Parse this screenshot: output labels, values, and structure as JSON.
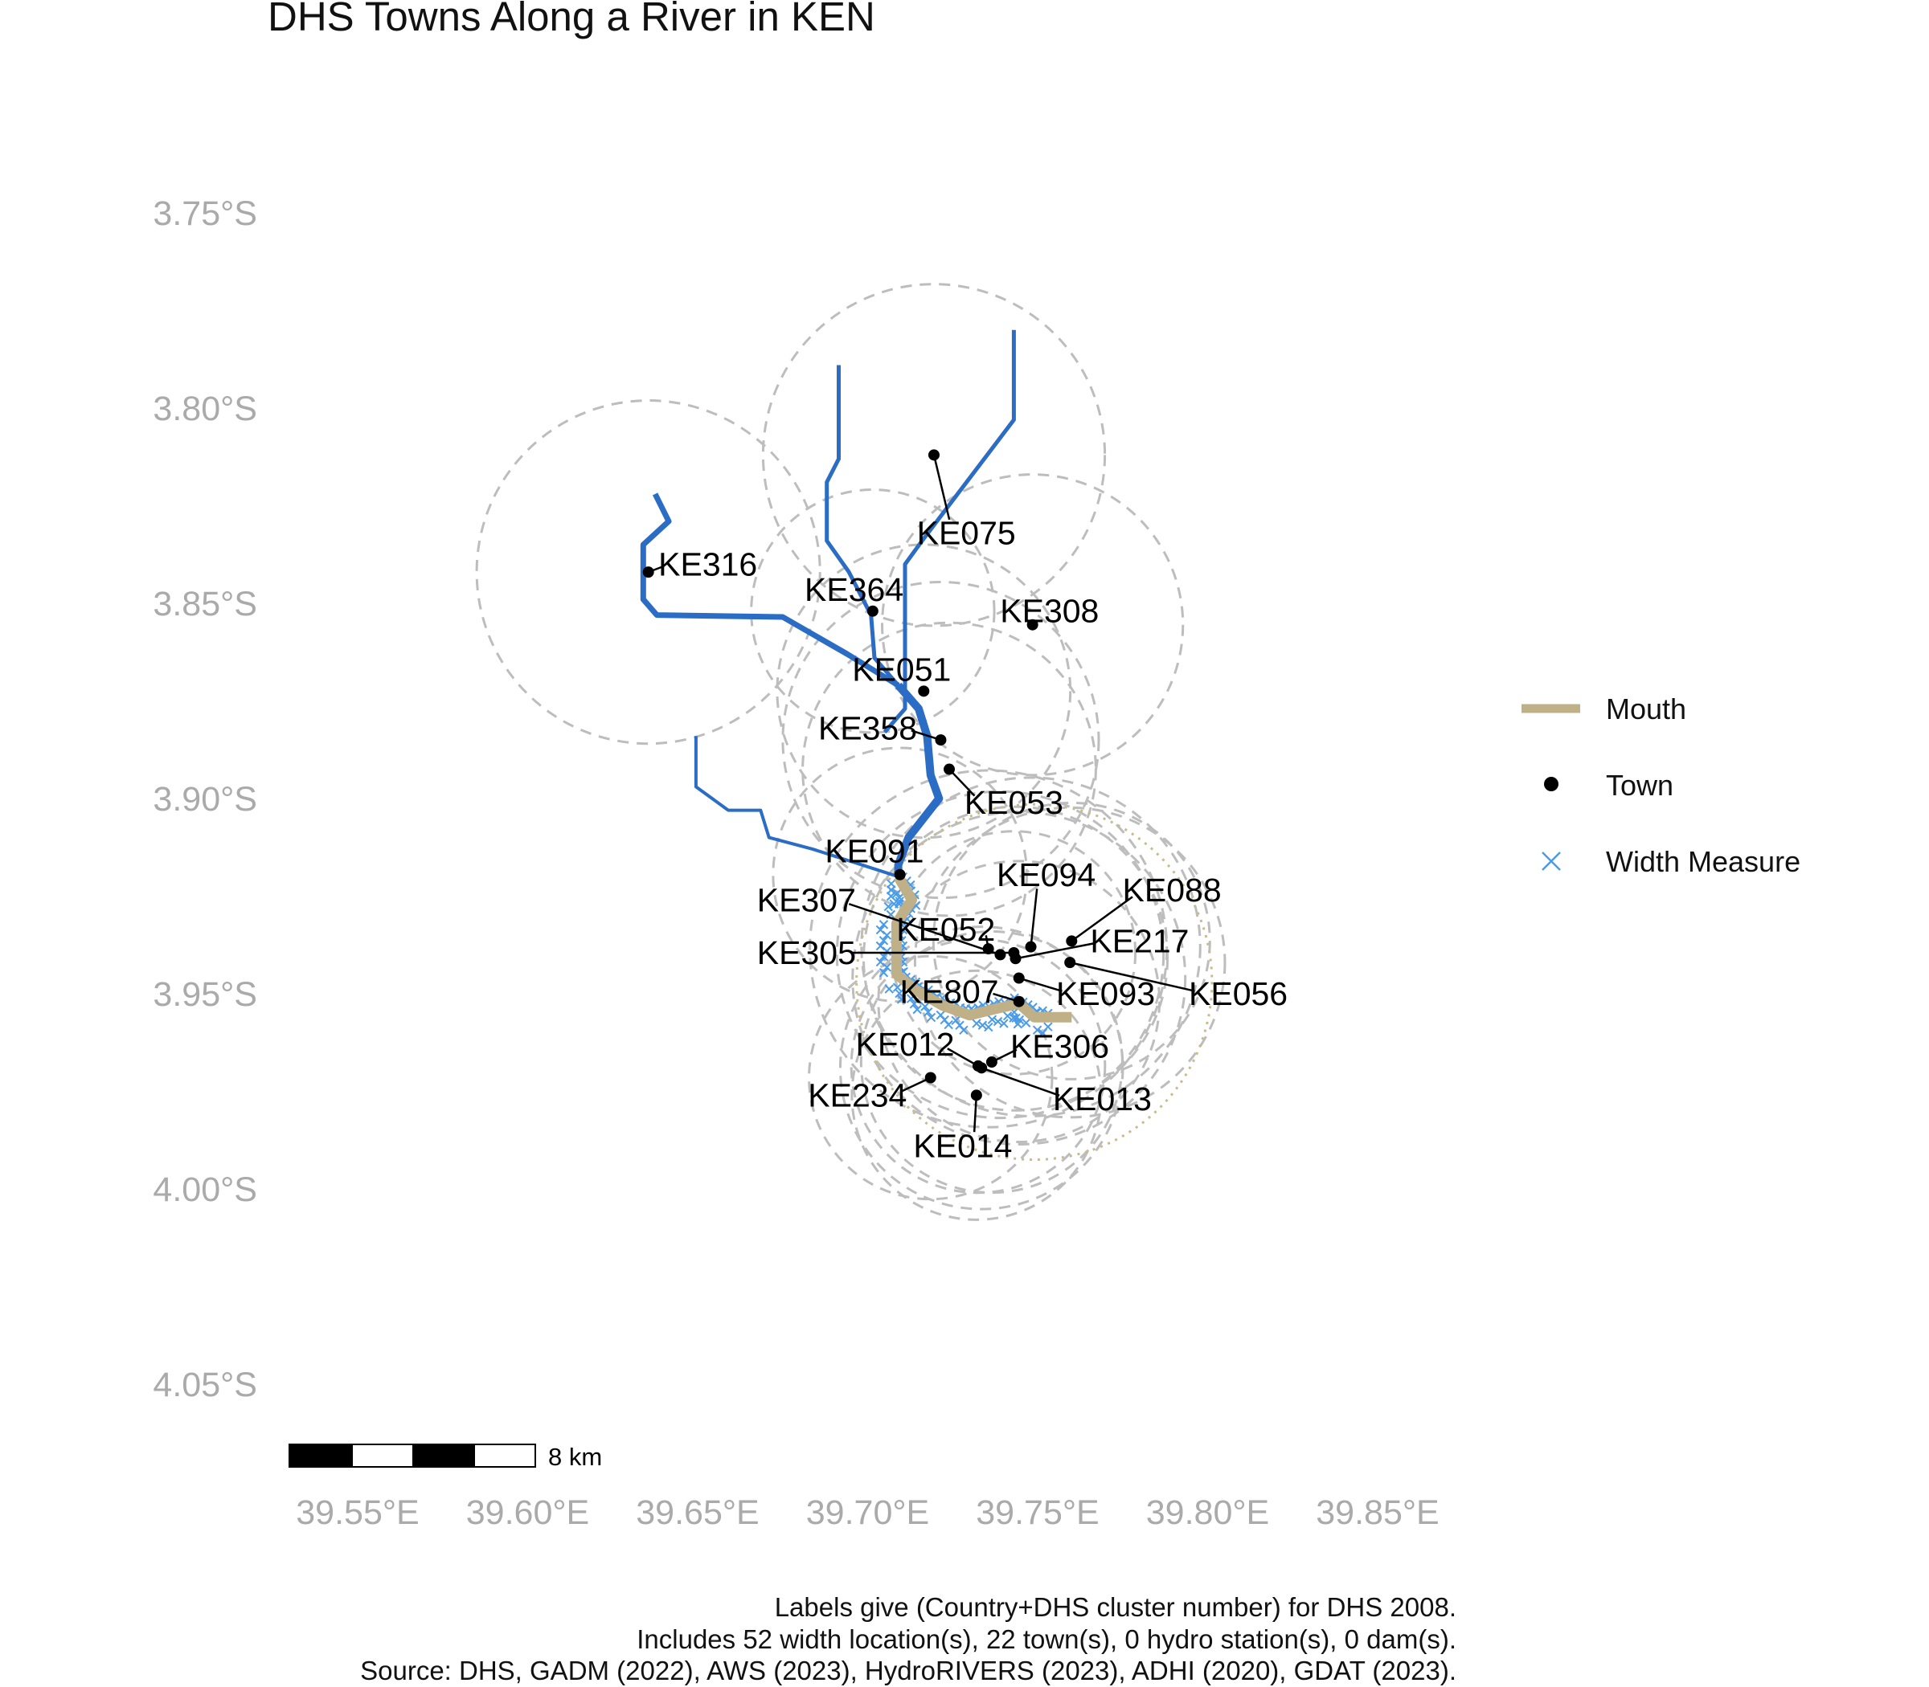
{
  "title": "DHS Towns Along a River in KEN",
  "axes": {
    "y_ticks": [
      {
        "lat": -3.75,
        "label": "3.75°S"
      },
      {
        "lat": -3.8,
        "label": "3.80°S"
      },
      {
        "lat": -3.85,
        "label": "3.85°S"
      },
      {
        "lat": -3.9,
        "label": "3.90°S"
      },
      {
        "lat": -3.95,
        "label": "3.95°S"
      },
      {
        "lat": -4.0,
        "label": "4.00°S"
      },
      {
        "lat": -4.05,
        "label": "4.05°S"
      }
    ],
    "x_ticks": [
      {
        "lon": 39.55,
        "label": "39.55°E"
      },
      {
        "lon": 39.6,
        "label": "39.60°E"
      },
      {
        "lon": 39.65,
        "label": "39.65°E"
      },
      {
        "lon": 39.7,
        "label": "39.70°E"
      },
      {
        "lon": 39.75,
        "label": "39.75°E"
      },
      {
        "lon": 39.8,
        "label": "39.80°E"
      },
      {
        "lon": 39.85,
        "label": "39.85°E"
      }
    ]
  },
  "legend": {
    "items": [
      {
        "key": "mouth",
        "label": "Mouth",
        "color": "#bfb088"
      },
      {
        "key": "town",
        "label": "Town",
        "color": "#000000"
      },
      {
        "key": "width",
        "label": "Width Measure",
        "color": "#4a9be8"
      }
    ]
  },
  "scale_bar": {
    "label": "8 km",
    "km": 8
  },
  "caption": [
    "Labels give (Country+DHS cluster number) for DHS 2008.",
    "Includes 52 width location(s), 22 town(s), 0 hydro station(s), 0 dam(s).",
    "Source: DHS, GADM (2022), AWS (2023), HydroRIVERS (2023), ADHI (2020), GDAT (2023)."
  ],
  "colors": {
    "river": "#2b6cc4",
    "mouth": "#bfb088",
    "width_measure": "#4a9be8",
    "buffer_circle": "#bdbdbd",
    "dotted_circle": "#c8bc8c",
    "tick_text": "#aaaaaa"
  },
  "towns": [
    {
      "id": "KE075",
      "lon": 39.7195,
      "lat": -3.812,
      "label": {
        "text": "KE075",
        "lon": 39.729,
        "lat": -3.832
      }
    },
    {
      "id": "KE316",
      "lon": 39.6355,
      "lat": -3.842,
      "label": {
        "text": "KE316",
        "lon": 39.653,
        "lat": -3.84
      }
    },
    {
      "id": "KE364",
      "lon": 39.7015,
      "lat": -3.852,
      "label": {
        "text": "KE364",
        "lon": 39.696,
        "lat": -3.8465
      }
    },
    {
      "id": "KE308",
      "lon": 39.7485,
      "lat": -3.8555,
      "label": {
        "text": "KE308",
        "lon": 39.7535,
        "lat": -3.852
      }
    },
    {
      "id": "KE051",
      "lon": 39.7165,
      "lat": -3.8725,
      "label": {
        "text": "KE051",
        "lon": 39.71,
        "lat": -3.867
      }
    },
    {
      "id": "KE358",
      "lon": 39.7215,
      "lat": -3.885,
      "label": {
        "text": "KE358",
        "lon": 39.7,
        "lat": -3.882
      }
    },
    {
      "id": "KE053",
      "lon": 39.724,
      "lat": -3.8925,
      "label": {
        "text": "KE053",
        "lon": 39.743,
        "lat": -3.901
      }
    },
    {
      "id": "KE091",
      "lon": 39.7095,
      "lat": -3.9195,
      "label": {
        "text": "KE091",
        "lon": 39.702,
        "lat": -3.9135
      }
    },
    {
      "id": "KE307",
      "lon": 39.739,
      "lat": -3.94,
      "label": {
        "text": "KE307",
        "lon": 39.682,
        "lat": -3.926
      }
    },
    {
      "id": "KE052",
      "lon": 39.7355,
      "lat": -3.9385,
      "label": {
        "text": "KE052",
        "lon": 39.723,
        "lat": -3.9335
      }
    },
    {
      "id": "KE094",
      "lon": 39.748,
      "lat": -3.938,
      "label": {
        "text": "KE094",
        "lon": 39.7525,
        "lat": -3.9195
      }
    },
    {
      "id": "KE088",
      "lon": 39.76,
      "lat": -3.9365,
      "label": {
        "text": "KE088",
        "lon": 39.7895,
        "lat": -3.9235
      }
    },
    {
      "id": "KE217",
      "lon": 39.7435,
      "lat": -3.941,
      "label": {
        "text": "KE217",
        "lon": 39.78,
        "lat": -3.9365
      }
    },
    {
      "id": "KE305",
      "lon": 39.743,
      "lat": -3.9395,
      "label": {
        "text": "KE305",
        "lon": 39.682,
        "lat": -3.9395
      }
    },
    {
      "id": "KE056",
      "lon": 39.7595,
      "lat": -3.942,
      "label": {
        "text": "KE056",
        "lon": 39.809,
        "lat": -3.95
      }
    },
    {
      "id": "KE093",
      "lon": 39.7445,
      "lat": -3.946,
      "label": {
        "text": "KE093",
        "lon": 39.77,
        "lat": -3.95
      }
    },
    {
      "id": "KE807",
      "lon": 39.7445,
      "lat": -3.952,
      "label": {
        "text": "KE807",
        "lon": 39.724,
        "lat": -3.9495
      }
    },
    {
      "id": "KE012",
      "lon": 39.7325,
      "lat": -3.9685,
      "label": {
        "text": "KE012",
        "lon": 39.711,
        "lat": -3.963
      }
    },
    {
      "id": "KE306",
      "lon": 39.7365,
      "lat": -3.9675,
      "label": {
        "text": "KE306",
        "lon": 39.7565,
        "lat": -3.9635
      }
    },
    {
      "id": "KE234",
      "lon": 39.7185,
      "lat": -3.9715,
      "label": {
        "text": "KE234",
        "lon": 39.697,
        "lat": -3.976
      }
    },
    {
      "id": "KE013",
      "lon": 39.7335,
      "lat": -3.969,
      "label": {
        "text": "KE013",
        "lon": 39.769,
        "lat": -3.977
      }
    },
    {
      "id": "KE014",
      "lon": 39.732,
      "lat": -3.976,
      "label": {
        "text": "KE014",
        "lon": 39.728,
        "lat": -3.989
      }
    }
  ],
  "rivers": [
    {
      "name": "left-trib",
      "width": 7,
      "points": [
        [
          39.6375,
          -3.822
        ],
        [
          39.6415,
          -3.829
        ],
        [
          39.634,
          -3.835
        ],
        [
          39.634,
          -3.849
        ],
        [
          39.638,
          -3.853
        ],
        [
          39.675,
          -3.8535
        ],
        [
          39.694,
          -3.863
        ],
        [
          39.709,
          -3.871
        ]
      ]
    },
    {
      "name": "mid-trib",
      "width": 5,
      "points": [
        [
          39.6915,
          -3.789
        ],
        [
          39.6915,
          -3.813
        ],
        [
          39.688,
          -3.819
        ],
        [
          39.688,
          -3.834
        ],
        [
          39.6945,
          -3.842
        ],
        [
          39.701,
          -3.853
        ],
        [
          39.702,
          -3.864
        ],
        [
          39.709,
          -3.871
        ]
      ]
    },
    {
      "name": "right-trib",
      "width": 5,
      "points": [
        [
          39.743,
          -3.78
        ],
        [
          39.743,
          -3.803
        ],
        [
          39.716,
          -3.834
        ],
        [
          39.711,
          -3.84
        ],
        [
          39.711,
          -3.877
        ],
        [
          39.705,
          -3.883
        ]
      ]
    },
    {
      "name": "main-upper",
      "width": 10,
      "points": [
        [
          39.709,
          -3.871
        ],
        [
          39.715,
          -3.877
        ],
        [
          39.7175,
          -3.884
        ],
        [
          39.7185,
          -3.894
        ],
        [
          39.721,
          -3.9
        ],
        [
          39.712,
          -3.91
        ],
        [
          39.709,
          -3.917
        ],
        [
          39.709,
          -3.92
        ]
      ]
    },
    {
      "name": "small-left",
      "width": 4,
      "points": [
        [
          39.6495,
          -3.884
        ],
        [
          39.6495,
          -3.897
        ],
        [
          39.659,
          -3.903
        ],
        [
          39.6685,
          -3.903
        ],
        [
          39.671,
          -3.91
        ],
        [
          39.684,
          -3.913
        ],
        [
          39.709,
          -3.92
        ]
      ]
    }
  ],
  "mouth_path": [
    [
      39.709,
      -3.92
    ],
    [
      39.713,
      -3.926
    ],
    [
      39.7085,
      -3.932
    ],
    [
      39.7085,
      -3.945
    ],
    [
      39.714,
      -3.949
    ],
    [
      39.722,
      -3.953
    ],
    [
      39.73,
      -3.9555
    ],
    [
      39.737,
      -3.954
    ],
    [
      39.7445,
      -3.9525
    ],
    [
      39.749,
      -3.956
    ],
    [
      39.76,
      -3.956
    ]
  ],
  "buffer_circles": [
    {
      "lon": 39.7195,
      "lat": -3.812,
      "r_km": 22.5
    },
    {
      "lon": 39.6355,
      "lat": -3.842,
      "r_km": 22.6
    },
    {
      "lon": 39.7015,
      "lat": -3.852,
      "r_km": 16.0
    },
    {
      "lon": 39.7485,
      "lat": -3.8555,
      "r_km": 19.8
    },
    {
      "lon": 39.7165,
      "lat": -3.8725,
      "r_km": 19.3
    },
    {
      "lon": 39.7215,
      "lat": -3.885,
      "r_km": 20.8
    },
    {
      "lon": 39.724,
      "lat": -3.8925,
      "r_km": 19.3
    },
    {
      "lon": 39.7095,
      "lat": -3.9195,
      "r_km": 16.7
    },
    {
      "lon": 39.739,
      "lat": -3.94,
      "r_km": 21.5
    },
    {
      "lon": 39.7355,
      "lat": -3.9385,
      "r_km": 23.5
    },
    {
      "lon": 39.748,
      "lat": -3.938,
      "r_km": 22.3
    },
    {
      "lon": 39.76,
      "lat": -3.9365,
      "r_km": 18.2
    },
    {
      "lon": 39.7435,
      "lat": -3.941,
      "r_km": 20.0
    },
    {
      "lon": 39.743,
      "lat": -3.9395,
      "r_km": 16.0
    },
    {
      "lon": 39.7595,
      "lat": -3.942,
      "r_km": 20.4
    },
    {
      "lon": 39.7445,
      "lat": -3.946,
      "r_km": 21.9
    },
    {
      "lon": 39.7445,
      "lat": -3.952,
      "r_km": 18.5
    },
    {
      "lon": 39.7325,
      "lat": -3.9685,
      "r_km": 16.7
    },
    {
      "lon": 39.7365,
      "lat": -3.9675,
      "r_km": 17.2
    },
    {
      "lon": 39.7185,
      "lat": -3.9715,
      "r_km": 16.0
    },
    {
      "lon": 39.7335,
      "lat": -3.969,
      "r_km": 18.6
    },
    {
      "lon": 39.732,
      "lat": -3.976,
      "r_km": 16.4
    }
  ],
  "dotted_circle": {
    "lon": 39.749,
    "lat": -3.947,
    "r_km": 23.4
  }
}
